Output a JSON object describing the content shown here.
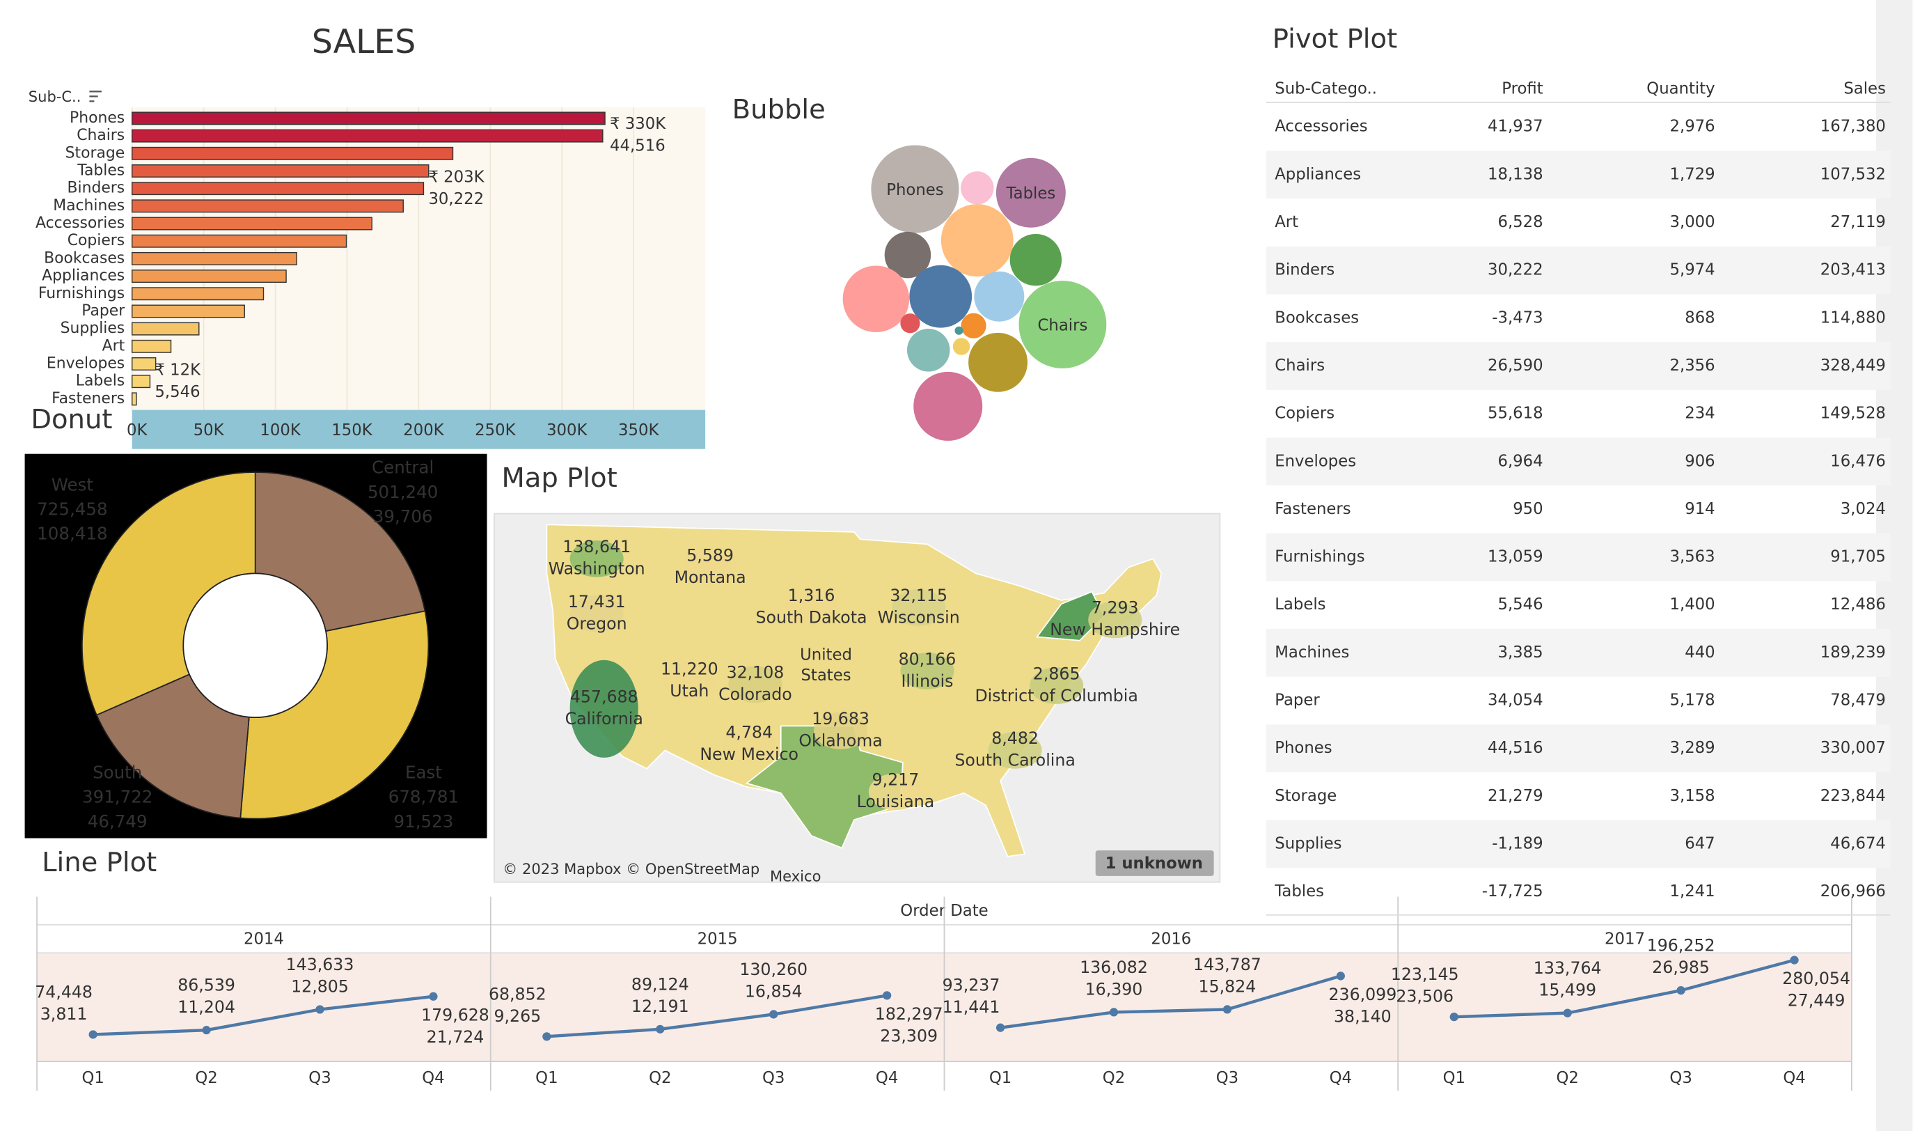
{
  "dashboard_title": "SALES",
  "chart_data": [
    {
      "type": "bar",
      "axis_label": "Sub-C..",
      "categories": [
        "Phones",
        "Chairs",
        "Storage",
        "Tables",
        "Binders",
        "Machines",
        "Accessories",
        "Copiers",
        "Bookcases",
        "Appliances",
        "Furnishings",
        "Paper",
        "Supplies",
        "Art",
        "Envelopes",
        "Labels",
        "Fasteners"
      ],
      "values": [
        330007,
        328449,
        223844,
        206966,
        203413,
        189239,
        167380,
        149528,
        114880,
        107532,
        91705,
        78479,
        46674,
        27119,
        16476,
        12486,
        3024
      ],
      "value_labels": [
        "₹ 330K",
        null,
        null,
        null,
        "₹ 203K",
        null,
        null,
        null,
        null,
        null,
        null,
        null,
        null,
        null,
        null,
        "₹ 12K",
        null
      ],
      "secondary_values": [
        44516,
        null,
        null,
        null,
        30222,
        null,
        null,
        null,
        null,
        null,
        null,
        null,
        null,
        null,
        null,
        5546,
        null
      ],
      "secondary_labels": [
        "44,516",
        null,
        null,
        null,
        "30,222",
        null,
        null,
        null,
        null,
        null,
        null,
        null,
        null,
        null,
        null,
        "5,546",
        null
      ],
      "colors": [
        "#b9173b",
        "#c21f3d",
        "#e2553f",
        "#e45c3f",
        "#e35a3f",
        "#e66743",
        "#ea7445",
        "#ec8048",
        "#f0954f",
        "#f19a52",
        "#f3a55a",
        "#f4b05f",
        "#f6c468",
        "#f7cd6e",
        "#f7d272",
        "#f8d474",
        "#f8d676"
      ],
      "xlim": [
        0,
        400000
      ],
      "xticks": [
        {
          "value": 0,
          "label": "0K"
        },
        {
          "value": 50000,
          "label": "50K"
        },
        {
          "value": 100000,
          "label": "100K"
        },
        {
          "value": 150000,
          "label": "150K"
        },
        {
          "value": 200000,
          "label": "200K"
        },
        {
          "value": 250000,
          "label": "250K"
        },
        {
          "value": 300000,
          "label": "300K"
        },
        {
          "value": 350000,
          "label": "350K"
        }
      ],
      "grid": true
    },
    {
      "type": "bubble",
      "title": "Bubble",
      "categories": [
        "Phones",
        "Tables",
        "Chairs",
        null,
        null,
        null,
        null,
        null,
        null,
        null,
        null,
        null,
        null,
        null,
        null,
        null,
        null
      ],
      "values": [
        330007,
        206966,
        328449,
        223844,
        46674,
        114880,
        91705,
        189239,
        167380,
        107532,
        78479,
        149528,
        203413,
        27119,
        16476,
        12486,
        3024
      ],
      "colors": [
        "#bab0ac",
        "#b07aa1",
        "#8cd17d",
        "#ffbe7d",
        "#fabfd2",
        "#59a14f",
        "#79706e",
        "#ff9d9a",
        "#4e79a7",
        "#a0cbe8",
        "#86bcb6",
        "#b6992d",
        "#d37295",
        "#f28e2b",
        "#e15759",
        "#f1ce63",
        "#499894"
      ]
    },
    {
      "type": "donut",
      "title": "Donut",
      "categories": [
        "Central",
        "East",
        "South",
        "West"
      ],
      "values": [
        501240,
        678781,
        391722,
        725458
      ],
      "value_labels": [
        "501,240",
        "678,781",
        "391,722",
        "725,458"
      ],
      "secondary_values": [
        39706,
        91523,
        46749,
        108418
      ],
      "secondary_labels": [
        "39,706",
        "91,523",
        "46,749",
        "108,418"
      ],
      "colors": [
        "#9c755f",
        "#e9c547",
        "#9c755f",
        "#e9c547"
      ]
    },
    {
      "type": "map",
      "title": "Map Plot",
      "labels": [
        "Washington",
        "Oregon",
        "California",
        "Montana",
        "South Dakota",
        "Wisconsin",
        "Utah",
        "Colorado",
        "Illinois",
        "New Mexico",
        "Oklahoma",
        "Louisiana",
        "South Carolina",
        "District of Columbia",
        "New Hampshire"
      ],
      "values": [
        138641,
        17431,
        457688,
        5589,
        1316,
        32115,
        11220,
        32108,
        80166,
        4784,
        19683,
        9217,
        8482,
        2865,
        7293
      ],
      "value_labels": [
        "138,641",
        "17,431",
        "457,688",
        "5,589",
        "1,316",
        "32,115",
        "11,220",
        "32,108",
        "80,166",
        "4,784",
        "19,683",
        "9,217",
        "8,482",
        "2,865",
        "7,293"
      ],
      "colors": [
        "#8fbc6a",
        "#e6d48c",
        "#3f8f55",
        "#eed98c",
        "#eed98c",
        "#d8d388",
        "#eed98c",
        "#d9cf7f",
        "#b9c978",
        "#eed98c",
        "#e3d285",
        "#eed98c",
        "#cfcf82",
        "#c8cc7d",
        "#cfcf82"
      ],
      "attribution": "© 2023 Mapbox © OpenStreetMap",
      "unknown_badge": "1 unknown",
      "place_labels": [
        "United",
        "States",
        "Mexico"
      ]
    },
    {
      "type": "line",
      "title": "Line Plot",
      "xlabel": "Order Date",
      "categories": [
        "Q1",
        "Q2",
        "Q3",
        "Q4"
      ],
      "ylim": [
        0,
        300000
      ],
      "series": [
        {
          "name": "2014",
          "color": "#4e79a7",
          "values": [
            74448,
            86539,
            143633,
            179628
          ],
          "value_labels": [
            "74,448",
            "86,539",
            "143,633",
            "179,628"
          ],
          "secondary_values": [
            3811,
            11204,
            12805,
            21724
          ],
          "secondary_labels": [
            "3,811",
            "11,204",
            "12,805",
            "21,724"
          ]
        },
        {
          "name": "2015",
          "color": "#4e79a7",
          "values": [
            68852,
            89124,
            130260,
            182297
          ],
          "value_labels": [
            "68,852",
            "89,124",
            "130,260",
            "182,297"
          ],
          "secondary_values": [
            9265,
            12191,
            16854,
            23309
          ],
          "secondary_labels": [
            "9,265",
            "12,191",
            "16,854",
            "23,309"
          ]
        },
        {
          "name": "2016",
          "color": "#4e79a7",
          "values": [
            93237,
            136082,
            143787,
            236099
          ],
          "value_labels": [
            "93,237",
            "136,082",
            "143,787",
            "236,099"
          ],
          "secondary_values": [
            11441,
            16390,
            15824,
            38140
          ],
          "secondary_labels": [
            "11,441",
            "16,390",
            "15,824",
            "38,140"
          ]
        },
        {
          "name": "2017",
          "color": "#4e79a7",
          "values": [
            123145,
            133764,
            196252,
            280054
          ],
          "value_labels": [
            "123,145",
            "133,764",
            "196,252",
            "280,054"
          ],
          "secondary_values": [
            23506,
            15499,
            26985,
            27449
          ],
          "secondary_labels": [
            "23,506",
            "15,499",
            "26,985",
            "27,449"
          ]
        }
      ]
    }
  ],
  "pivot_table": {
    "title": "Pivot Plot",
    "columns": [
      "Sub-Catego..",
      "Profit",
      "Quantity",
      "Sales"
    ],
    "rows": [
      [
        "Accessories",
        "41,937",
        "2,976",
        "167,380"
      ],
      [
        "Appliances",
        "18,138",
        "1,729",
        "107,532"
      ],
      [
        "Art",
        "6,528",
        "3,000",
        "27,119"
      ],
      [
        "Binders",
        "30,222",
        "5,974",
        "203,413"
      ],
      [
        "Bookcases",
        "-3,473",
        "868",
        "114,880"
      ],
      [
        "Chairs",
        "26,590",
        "2,356",
        "328,449"
      ],
      [
        "Copiers",
        "55,618",
        "234",
        "149,528"
      ],
      [
        "Envelopes",
        "6,964",
        "906",
        "16,476"
      ],
      [
        "Fasteners",
        "950",
        "914",
        "3,024"
      ],
      [
        "Furnishings",
        "13,059",
        "3,563",
        "91,705"
      ],
      [
        "Labels",
        "5,546",
        "1,400",
        "12,486"
      ],
      [
        "Machines",
        "3,385",
        "440",
        "189,239"
      ],
      [
        "Paper",
        "34,054",
        "5,178",
        "78,479"
      ],
      [
        "Phones",
        "44,516",
        "3,289",
        "330,007"
      ],
      [
        "Storage",
        "21,279",
        "3,158",
        "223,844"
      ],
      [
        "Supplies",
        "-1,189",
        "647",
        "46,674"
      ],
      [
        "Tables",
        "-17,725",
        "1,241",
        "206,966"
      ]
    ]
  }
}
